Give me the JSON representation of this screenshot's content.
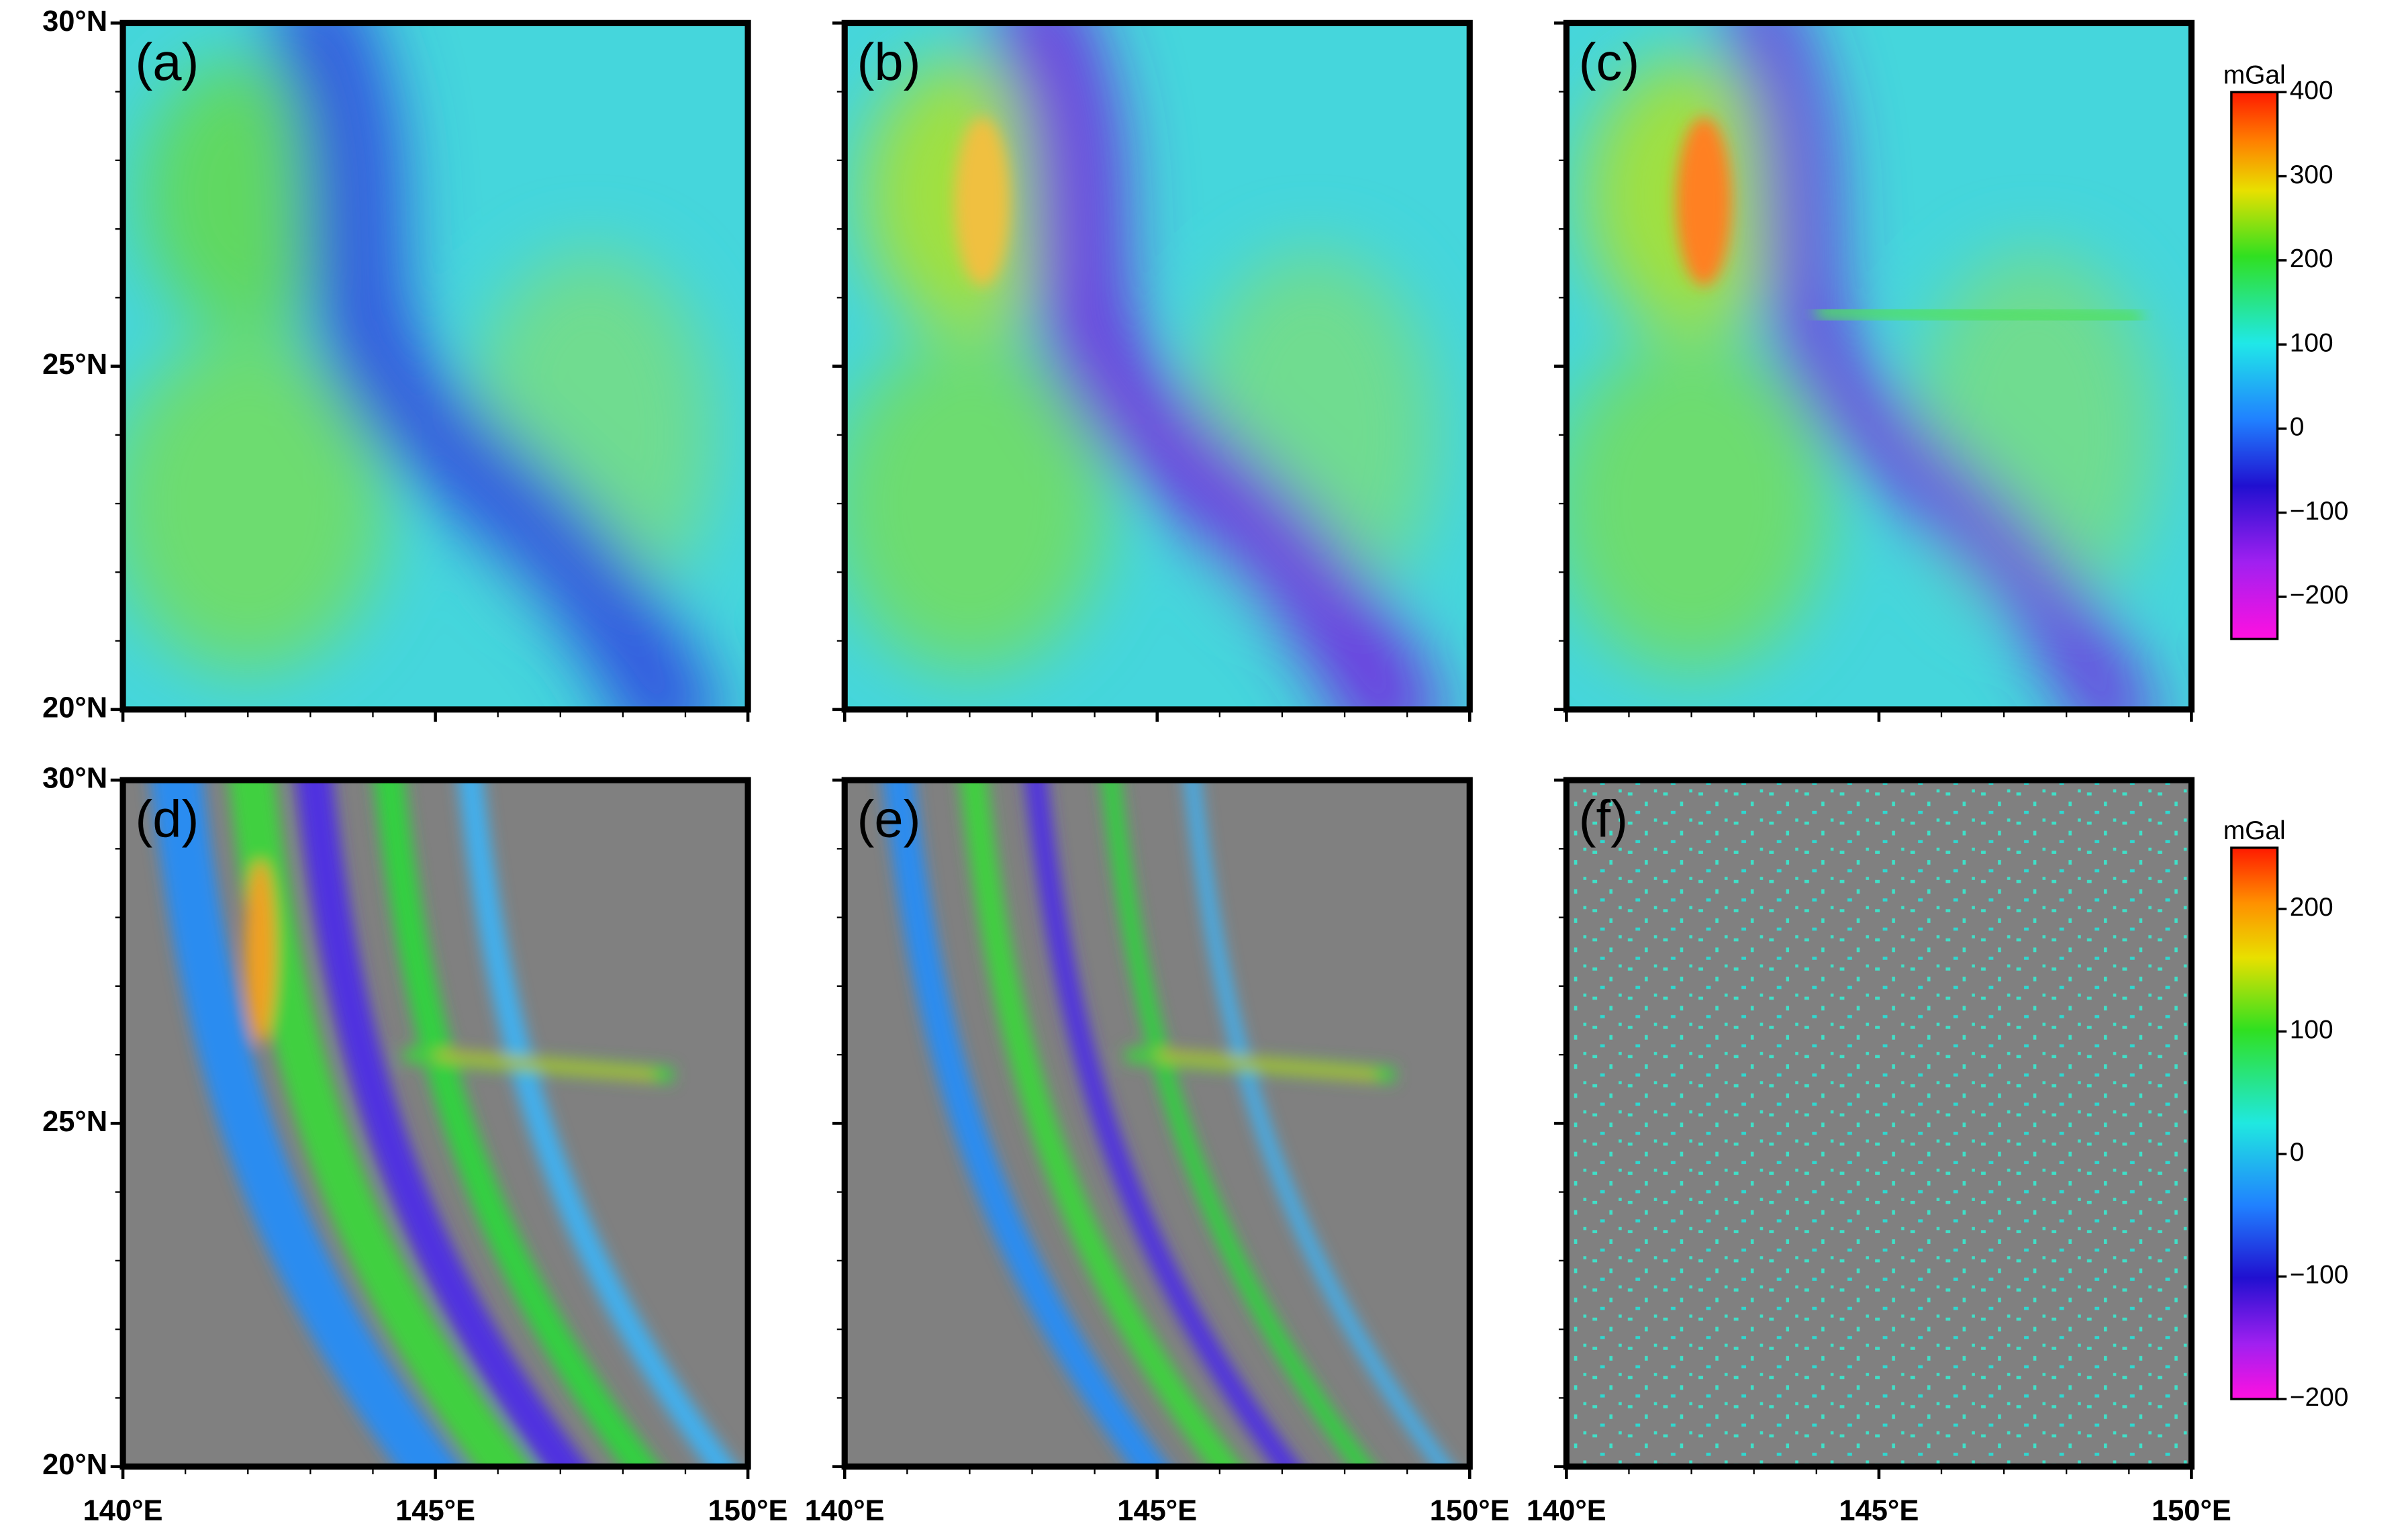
{
  "panels": [
    {
      "label": "(a)"
    },
    {
      "label": "(b)"
    },
    {
      "label": "(c)"
    },
    {
      "label": "(d)"
    },
    {
      "label": "(e)"
    },
    {
      "label": "(f)"
    }
  ],
  "y_axis_labels": [
    "30°N",
    "25°N",
    "20°N"
  ],
  "x_axis_labels": [
    "140°E",
    "145°E",
    "150°E"
  ],
  "colorbars": [
    {
      "unit": "mGal",
      "range": [
        -250,
        400
      ],
      "ticks": [
        400,
        300,
        200,
        100,
        0,
        {
          "value": -100,
          "label": "−100"
        },
        {
          "value": -200,
          "label": "−200"
        }
      ]
    },
    {
      "unit": "mGal",
      "range": [
        -200,
        250
      ],
      "ticks": [
        200,
        100,
        0,
        {
          "value": -100,
          "label": "−100"
        },
        {
          "value": -200,
          "label": "−200"
        }
      ]
    }
  ]
}
